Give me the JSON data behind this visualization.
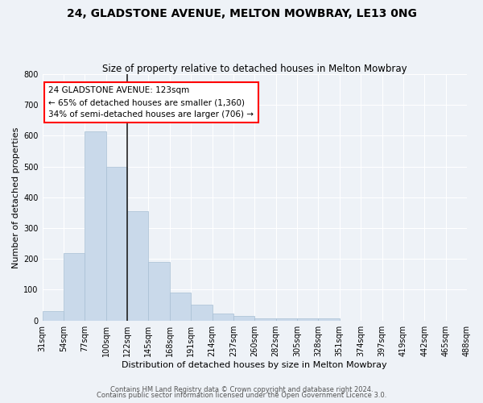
{
  "title": "24, GLADSTONE AVENUE, MELTON MOWBRAY, LE13 0NG",
  "subtitle": "Size of property relative to detached houses in Melton Mowbray",
  "xlabel": "Distribution of detached houses by size in Melton Mowbray",
  "ylabel": "Number of detached properties",
  "bar_values": [
    30,
    220,
    615,
    500,
    355,
    190,
    90,
    52,
    22,
    15,
    8,
    6,
    8,
    6,
    0,
    0,
    0,
    0,
    0,
    0
  ],
  "bar_labels": [
    "31sqm",
    "54sqm",
    "77sqm",
    "100sqm",
    "122sqm",
    "145sqm",
    "168sqm",
    "191sqm",
    "214sqm",
    "237sqm",
    "260sqm",
    "282sqm",
    "305sqm",
    "328sqm",
    "351sqm",
    "374sqm",
    "397sqm",
    "419sqm",
    "442sqm",
    "465sqm",
    "488sqm"
  ],
  "bar_color": "#c9d9ea",
  "bar_edge_color": "#a8bfd4",
  "vline_x": 4,
  "vline_color": "#222222",
  "annotation_text": "24 GLADSTONE AVENUE: 123sqm\n← 65% of detached houses are smaller (1,360)\n34% of semi-detached houses are larger (706) →",
  "annotation_box_color": "white",
  "annotation_box_edge_color": "red",
  "ylim": [
    0,
    800
  ],
  "yticks": [
    0,
    100,
    200,
    300,
    400,
    500,
    600,
    700,
    800
  ],
  "footer_line1": "Contains HM Land Registry data © Crown copyright and database right 2024.",
  "footer_line2": "Contains public sector information licensed under the Open Government Licence 3.0.",
  "background_color": "#eef2f7",
  "grid_color": "#ffffff",
  "title_fontsize": 10,
  "subtitle_fontsize": 8.5,
  "axis_label_fontsize": 8,
  "tick_fontsize": 7,
  "annotation_fontsize": 7.5,
  "footer_fontsize": 6
}
